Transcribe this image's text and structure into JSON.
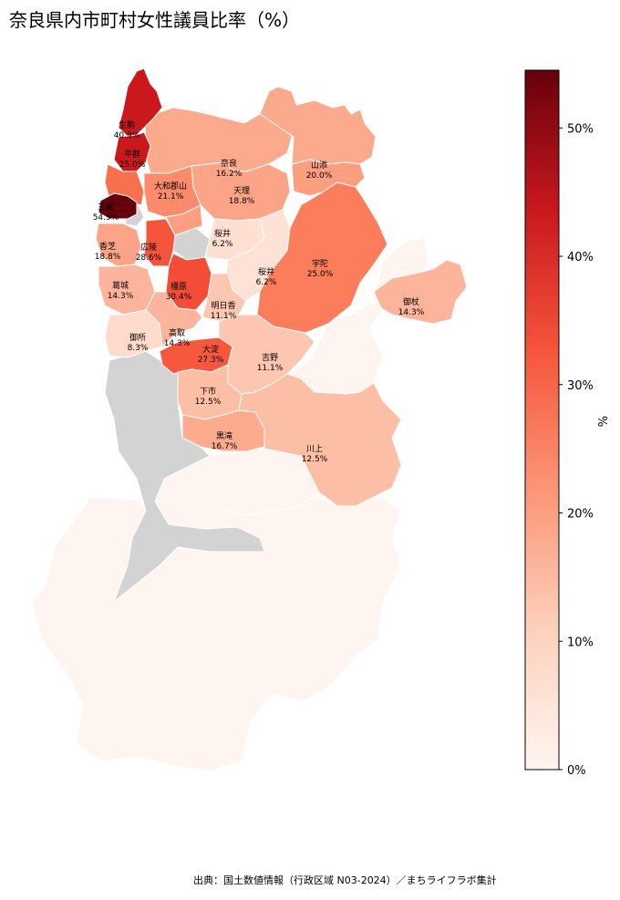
{
  "title": "奈良県内市町村女性議員比率（%）",
  "source": "出典：国土数値情報（行政区域 N03-2024）／まちライフラボ集計",
  "colorbar": {
    "label": "%",
    "ticks": [
      "0%",
      "10%",
      "20%",
      "30%",
      "40%",
      "50%"
    ],
    "min": 0,
    "max": 54.5,
    "colors": [
      "#fff5f0",
      "#fdd0bc",
      "#fc9576",
      "#f5553b",
      "#c9181d",
      "#67000d"
    ]
  },
  "no_data_color": "#d3d3d3",
  "regions": [
    {
      "name": "生駒",
      "value": "40.9%"
    },
    {
      "name": "平群",
      "value": "25.0%"
    },
    {
      "name": "奈良",
      "value": "16.2%"
    },
    {
      "name": "山添",
      "value": "20.0%"
    },
    {
      "name": "大和郡山",
      "value": "21.1%"
    },
    {
      "name": "天理",
      "value": "18.8%"
    },
    {
      "name": "三郷",
      "value": "54.5%"
    },
    {
      "name": "桜井",
      "value": "6.2%"
    },
    {
      "name": "宇陀",
      "value": "25.0%"
    },
    {
      "name": "香芝",
      "value": "18.8%"
    },
    {
      "name": "広陵",
      "value": "28.6%"
    },
    {
      "name": "桜井",
      "value": "6.2%"
    },
    {
      "name": "葛城",
      "value": "14.3%"
    },
    {
      "name": "橿原",
      "value": "30.4%"
    },
    {
      "name": "御杖",
      "value": "14.3%"
    },
    {
      "name": "明日香",
      "value": "11.1%"
    },
    {
      "name": "御所",
      "value": "8.3%"
    },
    {
      "name": "高取",
      "value": "14.3%"
    },
    {
      "name": "大淀",
      "value": "27.3%"
    },
    {
      "name": "吉野",
      "value": "11.1%"
    },
    {
      "name": "下市",
      "value": "12.5%"
    },
    {
      "name": "黒滝",
      "value": "16.7%"
    },
    {
      "name": "川上",
      "value": "12.5%"
    }
  ]
}
